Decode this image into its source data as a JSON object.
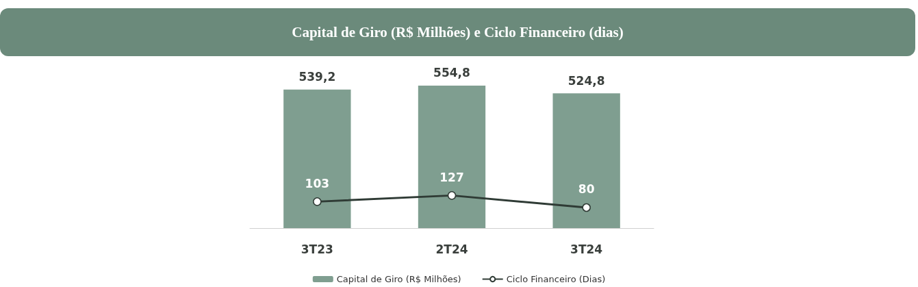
{
  "chart_data": {
    "type": "bar",
    "title": "Capital de Giro (R$ Milhões) e Ciclo Financeiro (dias)",
    "categories": [
      "3T23",
      "2T24",
      "3T24"
    ],
    "series": [
      {
        "name": "Capital de Giro (R$ Milhões)",
        "color": "#7f9e90",
        "values": [
          539.2,
          554.8,
          524.8
        ],
        "value_labels": [
          "539,2",
          "554,8",
          "524,8"
        ]
      },
      {
        "name": "Ciclo Financeiro (Dias)",
        "type": "line",
        "color": "#2f3b35",
        "marker": "circle",
        "values": [
          103,
          127,
          80
        ],
        "value_labels": [
          "103",
          "127",
          "80"
        ]
      }
    ],
    "tick_labels": "x",
    "legend": "bottom"
  }
}
